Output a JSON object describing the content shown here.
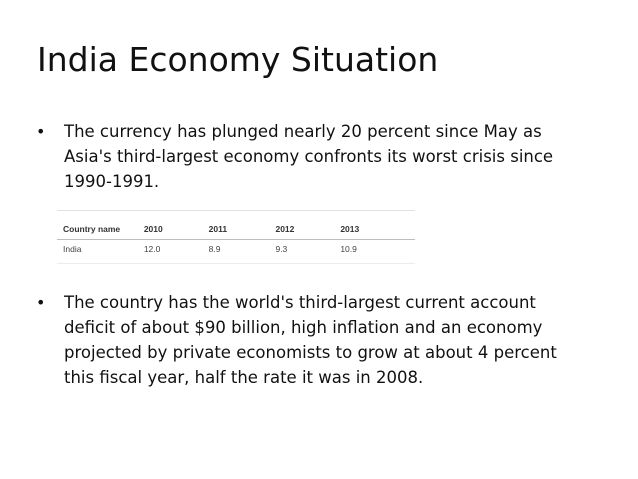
{
  "slide": {
    "title": "India Economy Situation",
    "bullet_marker": "•",
    "bullets": [
      "The currency has plunged nearly 20 percent since May as\nAsia's third-largest economy confronts its worst crisis since\n1990-1991.",
      "The country has the world's third-largest current account\ndeficit of about $90 billion, high inflation and an economy\nprojected by private economists to grow at about 4 percent\nthis fiscal year, half the rate it was in 2008."
    ]
  },
  "chart_data": {
    "type": "table",
    "columns": [
      "Country name",
      "2010",
      "2011",
      "2012",
      "2013"
    ],
    "rows": [
      [
        "India",
        "12.0",
        "8.9",
        "9.3",
        "10.9"
      ]
    ]
  }
}
